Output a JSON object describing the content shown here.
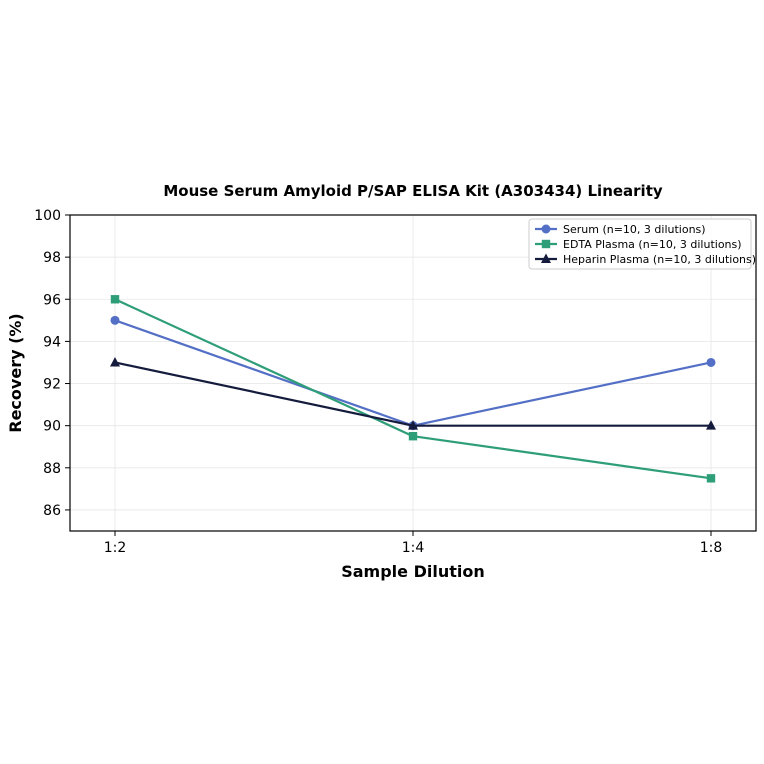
{
  "chart_data": {
    "type": "line",
    "title": "Mouse Serum Amyloid P/SAP ELISA Kit (A303434) Linearity",
    "xlabel": "Sample Dilution",
    "ylabel": "Recovery (%)",
    "categories": [
      "1:2",
      "1:4",
      "1:8"
    ],
    "ylim": [
      85,
      100
    ],
    "yticks": [
      86,
      88,
      90,
      92,
      94,
      96,
      98,
      100
    ],
    "grid": true,
    "legend_position": "top-right",
    "series": [
      {
        "name": "Serum (n=10, 3 dilutions)",
        "values": [
          95,
          90,
          93
        ],
        "color": "#5470c6",
        "marker": "circle"
      },
      {
        "name": "EDTA Plasma (n=10, 3 dilutions)",
        "values": [
          96,
          89.5,
          87.5
        ],
        "color": "#2e9e78",
        "marker": "square"
      },
      {
        "name": "Heparin Plasma (n=10, 3 dilutions)",
        "values": [
          93,
          90,
          90
        ],
        "color": "#141b3c",
        "marker": "triangle"
      }
    ]
  }
}
